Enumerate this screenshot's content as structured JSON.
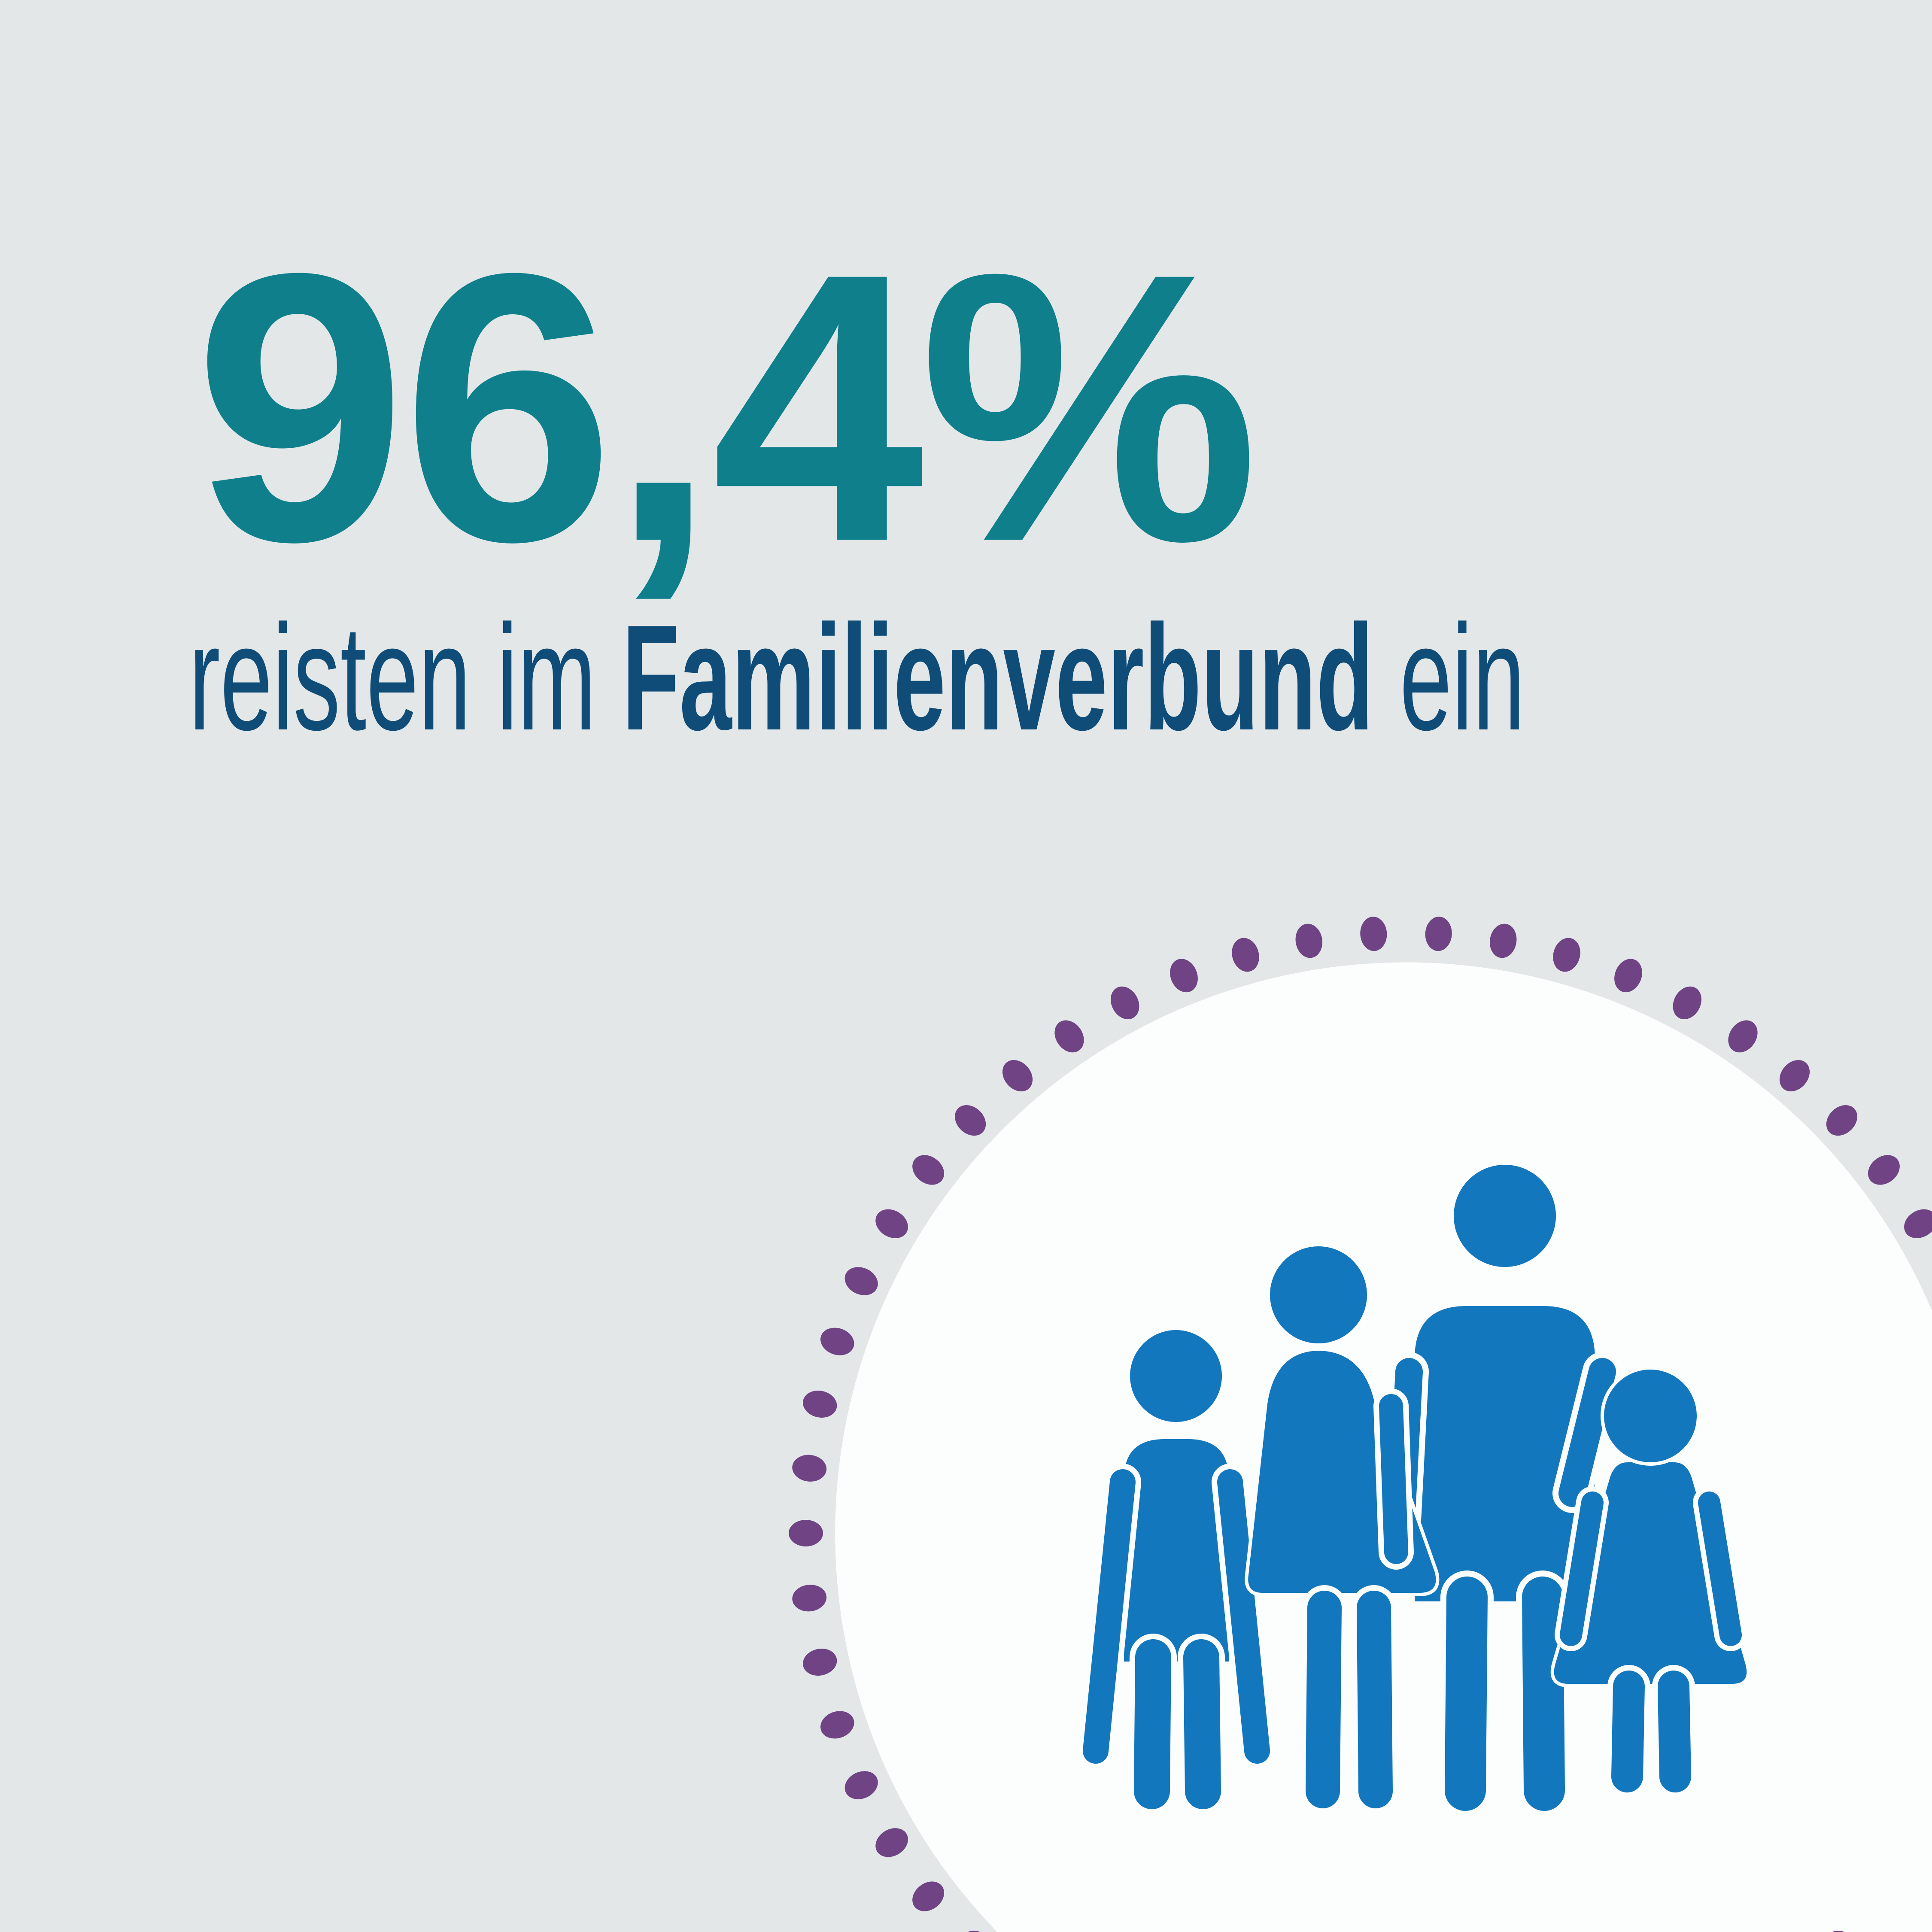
{
  "headline": {
    "value": "96,4%"
  },
  "caption": {
    "prefix": "reisten im ",
    "highlight": "Familienverbund",
    "suffix": " ein"
  },
  "illustration": {
    "name": "family-of-four",
    "figures": [
      "child-boy",
      "woman",
      "man",
      "child-girl"
    ]
  },
  "colors": {
    "background": "#E3E7E8",
    "headline_teal": "#0F7F8B",
    "caption_navy": "#0F4C78",
    "circle_white": "#FCFDFD",
    "dot_purple": "#6F4384",
    "figure_blue": "#1377BD"
  }
}
